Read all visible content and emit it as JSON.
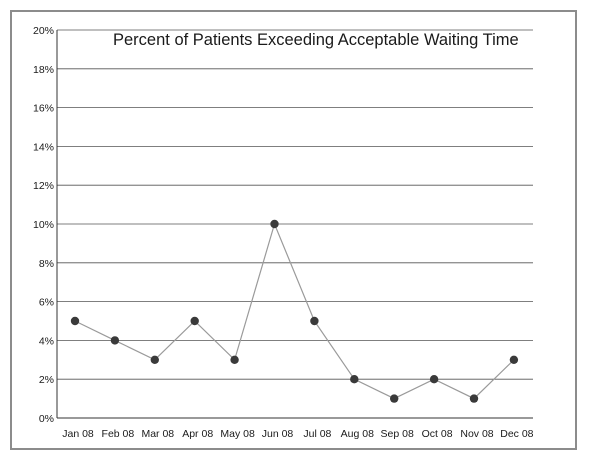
{
  "chart_data": {
    "type": "line",
    "title": "Percent of Patients Exceeding Acceptable Waiting Time",
    "xlabel": "",
    "ylabel": "",
    "categories": [
      "Jan 08",
      "Feb 08",
      "Mar 08",
      "Apr 08",
      "May 08",
      "Jun 08",
      "Jul 08",
      "Aug 08",
      "Sep 08",
      "Oct 08",
      "Nov 08",
      "Dec 08"
    ],
    "series": [
      {
        "values": [
          5,
          4,
          3,
          5,
          3,
          10,
          5,
          2,
          1,
          2,
          1,
          3
        ]
      }
    ],
    "ylim": [
      0,
      20
    ],
    "yticks": [
      "0%",
      "2%",
      "4%",
      "6%",
      "8%",
      "10%",
      "12%",
      "14%",
      "16%",
      "18%",
      "20%"
    ],
    "grid": true,
    "legend": "none",
    "colors": {
      "line": "#9a9a9a",
      "marker": "#3a3a3a",
      "grid": "#555555",
      "frame": "#8c8c8c"
    }
  }
}
